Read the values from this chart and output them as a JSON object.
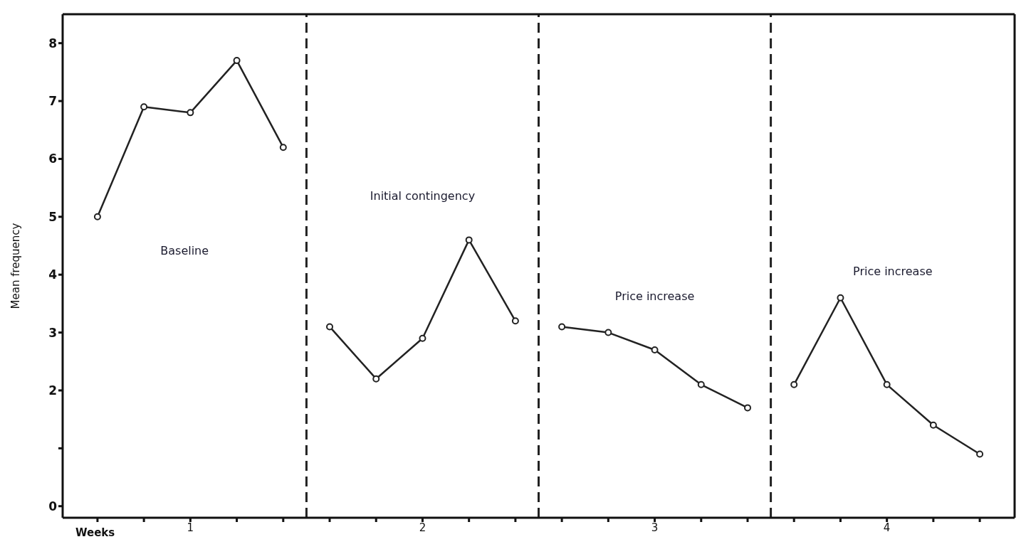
{
  "chart_data": {
    "type": "line",
    "xlabel": "Weeks",
    "ylabel": "Mean frequency",
    "xlim": [
      0.45,
      4.55
    ],
    "ylim": [
      -0.2,
      8.5
    ],
    "xticks": [
      {
        "value": 0.6,
        "label": null
      },
      {
        "value": 0.8,
        "label": null
      },
      1,
      {
        "value": 1.2,
        "label": null
      },
      {
        "value": 1.4,
        "label": null
      },
      {
        "value": 1.6,
        "label": null
      },
      {
        "value": 1.8,
        "label": null
      },
      2,
      {
        "value": 2.2,
        "label": null
      },
      {
        "value": 2.4,
        "label": null
      },
      {
        "value": 2.6,
        "label": null
      },
      {
        "value": 2.8,
        "label": null
      },
      3,
      {
        "value": 3.2,
        "label": null
      },
      {
        "value": 3.4,
        "label": null
      },
      {
        "value": 3.6,
        "label": null
      },
      {
        "value": 3.8,
        "label": null
      },
      4,
      {
        "value": 4.2,
        "label": null
      },
      {
        "value": 4.4,
        "label": null
      }
    ],
    "yticks": [
      0,
      {
        "value": 1,
        "label": null
      },
      2,
      3,
      4,
      5,
      6,
      7,
      8
    ],
    "series": [
      {
        "color": "#222222",
        "x": [
          0.6,
          0.8,
          1,
          1.2,
          1.4
        ],
        "values": [
          5.0,
          6.9,
          6.8,
          7.7,
          6.2
        ]
      },
      {
        "color": "#222222",
        "x": [
          1.6,
          1.8,
          2,
          2.2,
          2.4
        ],
        "values": [
          3.1,
          2.2,
          2.9,
          4.6,
          3.2
        ]
      },
      {
        "color": "#222222",
        "x": [
          2.6,
          2.8,
          3,
          3.2,
          3.4
        ],
        "values": [
          3.1,
          3.0,
          2.7,
          2.1,
          1.7
        ]
      },
      {
        "color": "#222222",
        "x": [
          3.6,
          3.8,
          4,
          4.2,
          4.4
        ],
        "values": [
          2.1,
          3.6,
          2.1,
          1.4,
          0.9
        ]
      }
    ],
    "ref_lines": [
      {
        "axis": "x",
        "value": 1.5,
        "color": "#222222",
        "line_style": "dashed"
      },
      {
        "axis": "x",
        "value": 2.5,
        "color": "#222222",
        "line_style": "dashed"
      },
      {
        "axis": "x",
        "value": 3.5,
        "color": "#222222",
        "line_style": "dashed"
      }
    ],
    "annotations": [
      "Baseline",
      "Initial contingency",
      "Price increase",
      "Price increase"
    ],
    "marker": "circle",
    "line_style": "solid",
    "grid": false,
    "legend": false
  }
}
